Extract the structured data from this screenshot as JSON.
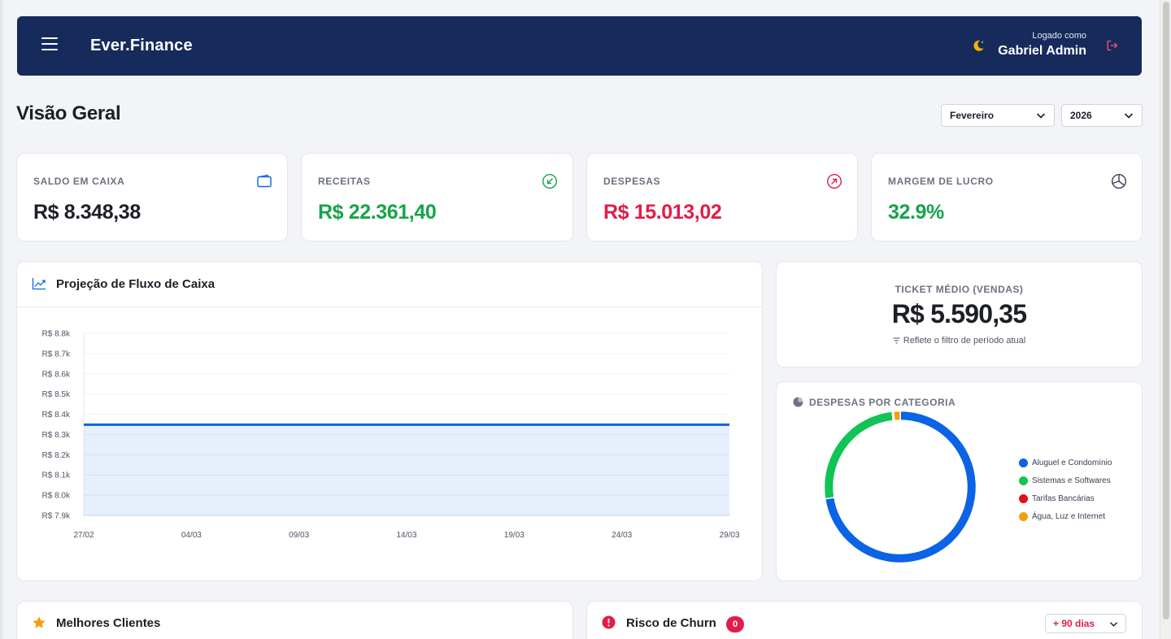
{
  "header": {
    "brand": "Ever.Finance",
    "logged_label": "Logado como",
    "user_name": "Gabriel Admin"
  },
  "page": {
    "title": "Visão Geral",
    "month_select": "Fevereiro",
    "year_select": "2026"
  },
  "kpis": [
    {
      "label": "SALDO EM CAIXA",
      "value": "R$ 8.348,38",
      "color": "#1c1f26",
      "icon": "wallet-icon"
    },
    {
      "label": "RECEITAS",
      "value": "R$ 22.361,40",
      "color": "#16a34a",
      "icon": "arrow-down-left-icon"
    },
    {
      "label": "DESPESAS",
      "value": "R$ 15.013,02",
      "color": "#e11d48",
      "icon": "arrow-up-right-icon"
    },
    {
      "label": "MARGEM DE LUCRO",
      "value": "32.9%",
      "color": "#16a34a",
      "icon": "pie-chart-icon"
    }
  ],
  "cashflow": {
    "title": "Projeção de Fluxo de Caixa",
    "icon": "trend-up-icon"
  },
  "ticket": {
    "label": "TICKET MÉDIO (VENDAS)",
    "value": "R$ 5.590,35",
    "note": "Reflete o filtro de período atual"
  },
  "expenses_by_category": {
    "title": "DESPESAS POR CATEGORIA",
    "icon": "pie-chart-icon"
  },
  "best_clients": {
    "title": "Melhores Clientes",
    "icon": "star-icon"
  },
  "churn": {
    "title": "Risco de Churn",
    "count": "0",
    "filter": "+ 90 dias",
    "icon": "alert-circle-icon"
  },
  "colors": {
    "header_bg": "#162a5c",
    "accent_blue": "#0b63e5",
    "positive": "#16a34a",
    "negative": "#e11d48"
  },
  "chart_data": [
    {
      "type": "area",
      "title": "",
      "x": [
        "27/02",
        "04/03",
        "09/03",
        "14/03",
        "19/03",
        "24/03",
        "29/03"
      ],
      "series": [
        {
          "name": "",
          "values": [
            8348.38,
            8348.38,
            8348.38,
            8348.38,
            8348.38,
            8348.38,
            8348.38
          ]
        }
      ],
      "yticks": [
        "R$ 8.8k",
        "R$ 8.7k",
        "R$ 8.6k",
        "R$ 8.5k",
        "R$ 8.4k",
        "R$ 8.3k",
        "R$ 8.2k",
        "R$ 8.1k",
        "R$ 8.0k",
        "R$ 7.9k"
      ],
      "ylim": [
        7900,
        8800
      ],
      "grid": true,
      "color": "#0b63e5"
    },
    {
      "type": "pie",
      "title": "",
      "categories": [
        "Aluguel e Condomínio",
        "Sistemas e Softwares",
        "Tarifas Bancárias",
        "Água, Luz e Internet"
      ],
      "values": [
        72.5,
        25.8,
        0.3,
        1.4
      ],
      "colors": [
        "#0b63e5",
        "#10c455",
        "#e31212",
        "#f59e0b"
      ],
      "legend": "right"
    }
  ]
}
